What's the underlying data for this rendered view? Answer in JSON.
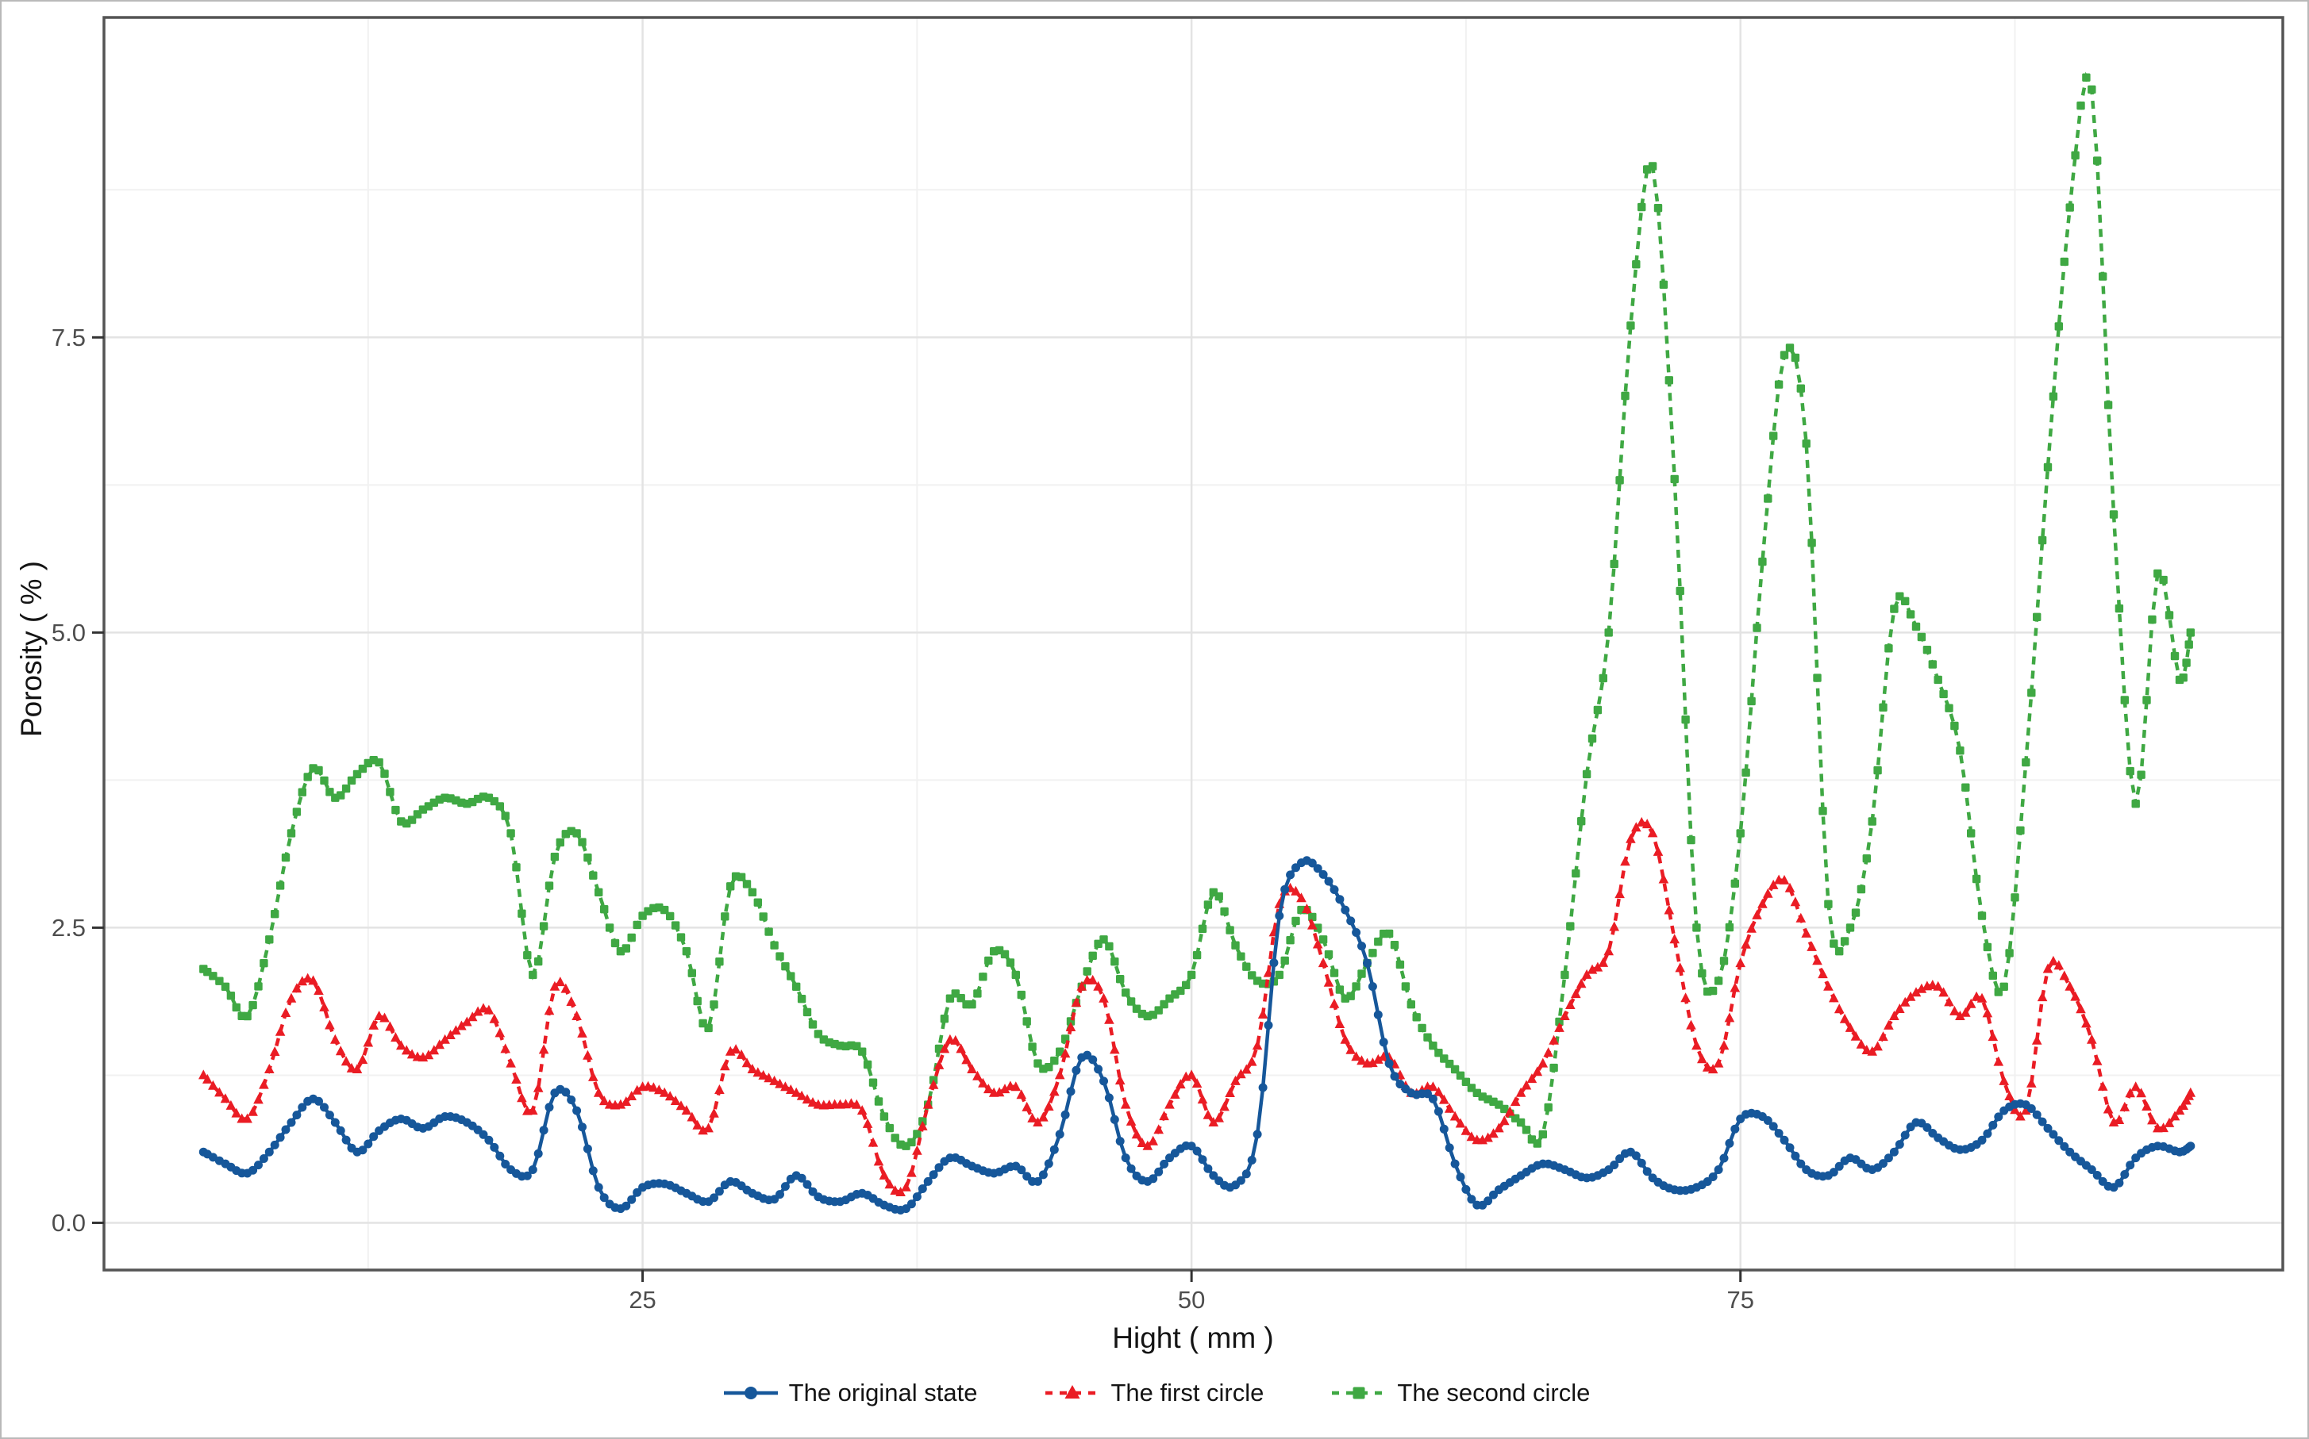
{
  "figure": {
    "kind": "line-chart",
    "background": "#ffffff",
    "outer_border": "#b9b9b9"
  },
  "style": {
    "panel_border": "#545454",
    "grid_major": "#e3e3e3",
    "grid_minor": "#f1f1f1",
    "tick_mark_color": "#333333",
    "tick_label_color": "#4d4d4d",
    "axis_title_color": "#141414"
  },
  "chart_data": {
    "type": "line",
    "title": "",
    "xlabel": "Hight ( mm )",
    "ylabel": "Porosity ( % )",
    "xlim": [
      0.47,
      99.7
    ],
    "ylim": [
      -0.4,
      10.21
    ],
    "grid": "major+minor",
    "legend_position": "bottom",
    "x_ticks": [
      {
        "v": 25,
        "label": "25"
      },
      {
        "v": 50,
        "label": "50"
      },
      {
        "v": 75,
        "label": "75"
      }
    ],
    "y_ticks": [
      {
        "v": 0,
        "label": "0.0"
      },
      {
        "v": 2.5,
        "label": "2.5"
      },
      {
        "v": 5,
        "label": "5.0"
      },
      {
        "v": 7.5,
        "label": "7.5"
      }
    ],
    "x_minor": [
      12.5,
      37.5,
      62.5,
      87.5
    ],
    "y_minor": [
      1.25,
      3.75,
      6.25,
      8.75
    ],
    "x": [
      5,
      6,
      7,
      8,
      9,
      10,
      11,
      12,
      13,
      14,
      15,
      16,
      17,
      18,
      19,
      20,
      21,
      22,
      23,
      24,
      25,
      26,
      27,
      28,
      29,
      30,
      31,
      32,
      33,
      34,
      35,
      36,
      37,
      38,
      39,
      40,
      41,
      42,
      43,
      44,
      45,
      46,
      47,
      48,
      49,
      50,
      51,
      52,
      53,
      54,
      55,
      56,
      57,
      58,
      59,
      60,
      61,
      62,
      63,
      64,
      65,
      66,
      67,
      68,
      69,
      70,
      71,
      72,
      73,
      74,
      75,
      76,
      77,
      78,
      79,
      80,
      81,
      82,
      83,
      84,
      85,
      86,
      87,
      88,
      89,
      90,
      91,
      92,
      93,
      94,
      95,
      95.5
    ],
    "series": [
      {
        "name": "The original state",
        "color": "#16579A",
        "marker": "circle",
        "line_style": "solid",
        "values": [
          0.6,
          0.5,
          0.42,
          0.6,
          0.85,
          1.05,
          0.85,
          0.6,
          0.78,
          0.88,
          0.8,
          0.9,
          0.85,
          0.7,
          0.45,
          0.45,
          1.1,
          0.95,
          0.3,
          0.12,
          0.3,
          0.33,
          0.25,
          0.18,
          0.35,
          0.25,
          0.2,
          0.4,
          0.22,
          0.18,
          0.25,
          0.15,
          0.12,
          0.35,
          0.55,
          0.48,
          0.42,
          0.48,
          0.35,
          0.75,
          1.4,
          1.2,
          0.55,
          0.35,
          0.55,
          0.65,
          0.4,
          0.32,
          0.75,
          2.6,
          3.05,
          2.95,
          2.65,
          2.2,
          1.35,
          1.1,
          1.05,
          0.5,
          0.15,
          0.28,
          0.4,
          0.5,
          0.45,
          0.38,
          0.45,
          0.6,
          0.38,
          0.28,
          0.3,
          0.45,
          0.88,
          0.9,
          0.7,
          0.45,
          0.4,
          0.55,
          0.45,
          0.6,
          0.85,
          0.72,
          0.62,
          0.7,
          0.95,
          1.0,
          0.8,
          0.6,
          0.45,
          0.3,
          0.55,
          0.65,
          0.6,
          0.65
        ]
      },
      {
        "name": "The first circle",
        "color": "#EA1C24",
        "marker": "triangle",
        "line_style": "dashed",
        "values": [
          1.25,
          1.05,
          0.88,
          1.3,
          1.9,
          2.05,
          1.55,
          1.3,
          1.75,
          1.5,
          1.4,
          1.55,
          1.7,
          1.8,
          1.35,
          0.95,
          2.0,
          1.75,
          1.1,
          1.0,
          1.15,
          1.1,
          0.95,
          0.8,
          1.45,
          1.3,
          1.2,
          1.1,
          1.0,
          1.0,
          0.95,
          0.4,
          0.3,
          1.0,
          1.55,
          1.3,
          1.1,
          1.15,
          0.85,
          1.25,
          2.0,
          1.9,
          1.0,
          0.65,
          1.0,
          1.25,
          0.85,
          1.2,
          1.5,
          2.7,
          2.75,
          2.2,
          1.55,
          1.35,
          1.4,
          1.1,
          1.15,
          0.9,
          0.7,
          0.8,
          1.1,
          1.35,
          1.75,
          2.1,
          2.3,
          3.25,
          3.3,
          2.4,
          1.5,
          1.35,
          2.2,
          2.7,
          2.9,
          2.45,
          2.0,
          1.65,
          1.45,
          1.75,
          1.95,
          2.0,
          1.75,
          1.9,
          1.2,
          0.95,
          2.15,
          2.0,
          1.55,
          0.85,
          1.15,
          0.8,
          0.95,
          1.1
        ]
      },
      {
        "name": "The second circle",
        "color": "#3FA843",
        "marker": "square",
        "line_style": "dashed",
        "values": [
          2.15,
          2.0,
          1.75,
          2.4,
          3.3,
          3.85,
          3.6,
          3.8,
          3.9,
          3.4,
          3.5,
          3.6,
          3.55,
          3.6,
          3.3,
          2.1,
          3.1,
          3.3,
          2.8,
          2.3,
          2.6,
          2.65,
          2.3,
          1.65,
          2.85,
          2.8,
          2.35,
          2.0,
          1.6,
          1.5,
          1.45,
          0.9,
          0.65,
          1.0,
          1.9,
          1.85,
          2.3,
          2.1,
          1.35,
          1.45,
          2.0,
          2.4,
          1.95,
          1.75,
          1.9,
          2.1,
          2.8,
          2.35,
          2.05,
          2.1,
          2.65,
          2.4,
          1.9,
          2.2,
          2.45,
          1.85,
          1.5,
          1.3,
          1.1,
          1.0,
          0.85,
          0.75,
          2.1,
          3.8,
          5.0,
          7.6,
          8.95,
          6.3,
          2.5,
          2.05,
          3.3,
          5.6,
          7.35,
          6.6,
          2.7,
          2.5,
          3.4,
          5.2,
          5.05,
          4.6,
          4.0,
          2.6,
          2.0,
          3.9,
          6.4,
          8.6,
          9.6,
          6.0,
          3.55,
          5.5,
          4.6,
          5.0
        ]
      }
    ]
  }
}
